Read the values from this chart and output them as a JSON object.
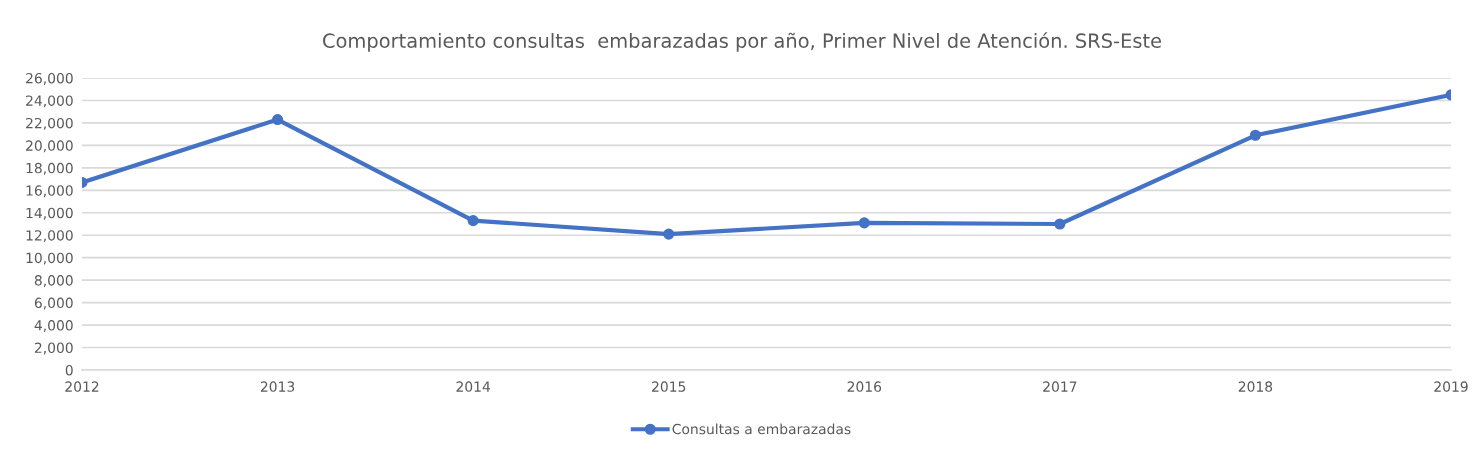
{
  "chart_data": {
    "type": "line",
    "title": "Comportamiento consultas  embarazadas por año, Primer Nivel de Atención. SRS-Este",
    "categories": [
      "2012",
      "2013",
      "2014",
      "2015",
      "2016",
      "2017",
      "2018",
      "2019"
    ],
    "series": [
      {
        "name": "Consultas a embarazadas",
        "color": "#4472c4",
        "values": [
          16700,
          22300,
          13300,
          12100,
          13100,
          13000,
          20900,
          24500
        ]
      }
    ],
    "ylim": [
      0,
      26000
    ],
    "yticks": [
      {
        "value": 0,
        "label": "0"
      },
      {
        "value": 2000,
        "label": "2,000"
      },
      {
        "value": 4000,
        "label": "4,000"
      },
      {
        "value": 6000,
        "label": "6,000"
      },
      {
        "value": 8000,
        "label": "8,000"
      },
      {
        "value": 10000,
        "label": "10,000"
      },
      {
        "value": 12000,
        "label": "12,000"
      },
      {
        "value": 14000,
        "label": "14,000"
      },
      {
        "value": 16000,
        "label": "16,000"
      },
      {
        "value": 18000,
        "label": "18,000"
      },
      {
        "value": 20000,
        "label": "20,000"
      },
      {
        "value": 22000,
        "label": "22,000"
      },
      {
        "value": 24000,
        "label": "24,000"
      },
      {
        "value": 26000,
        "label": "26,000"
      }
    ],
    "grid": "y",
    "legend": "bottom",
    "marker": "circle",
    "line_style": "solid"
  }
}
